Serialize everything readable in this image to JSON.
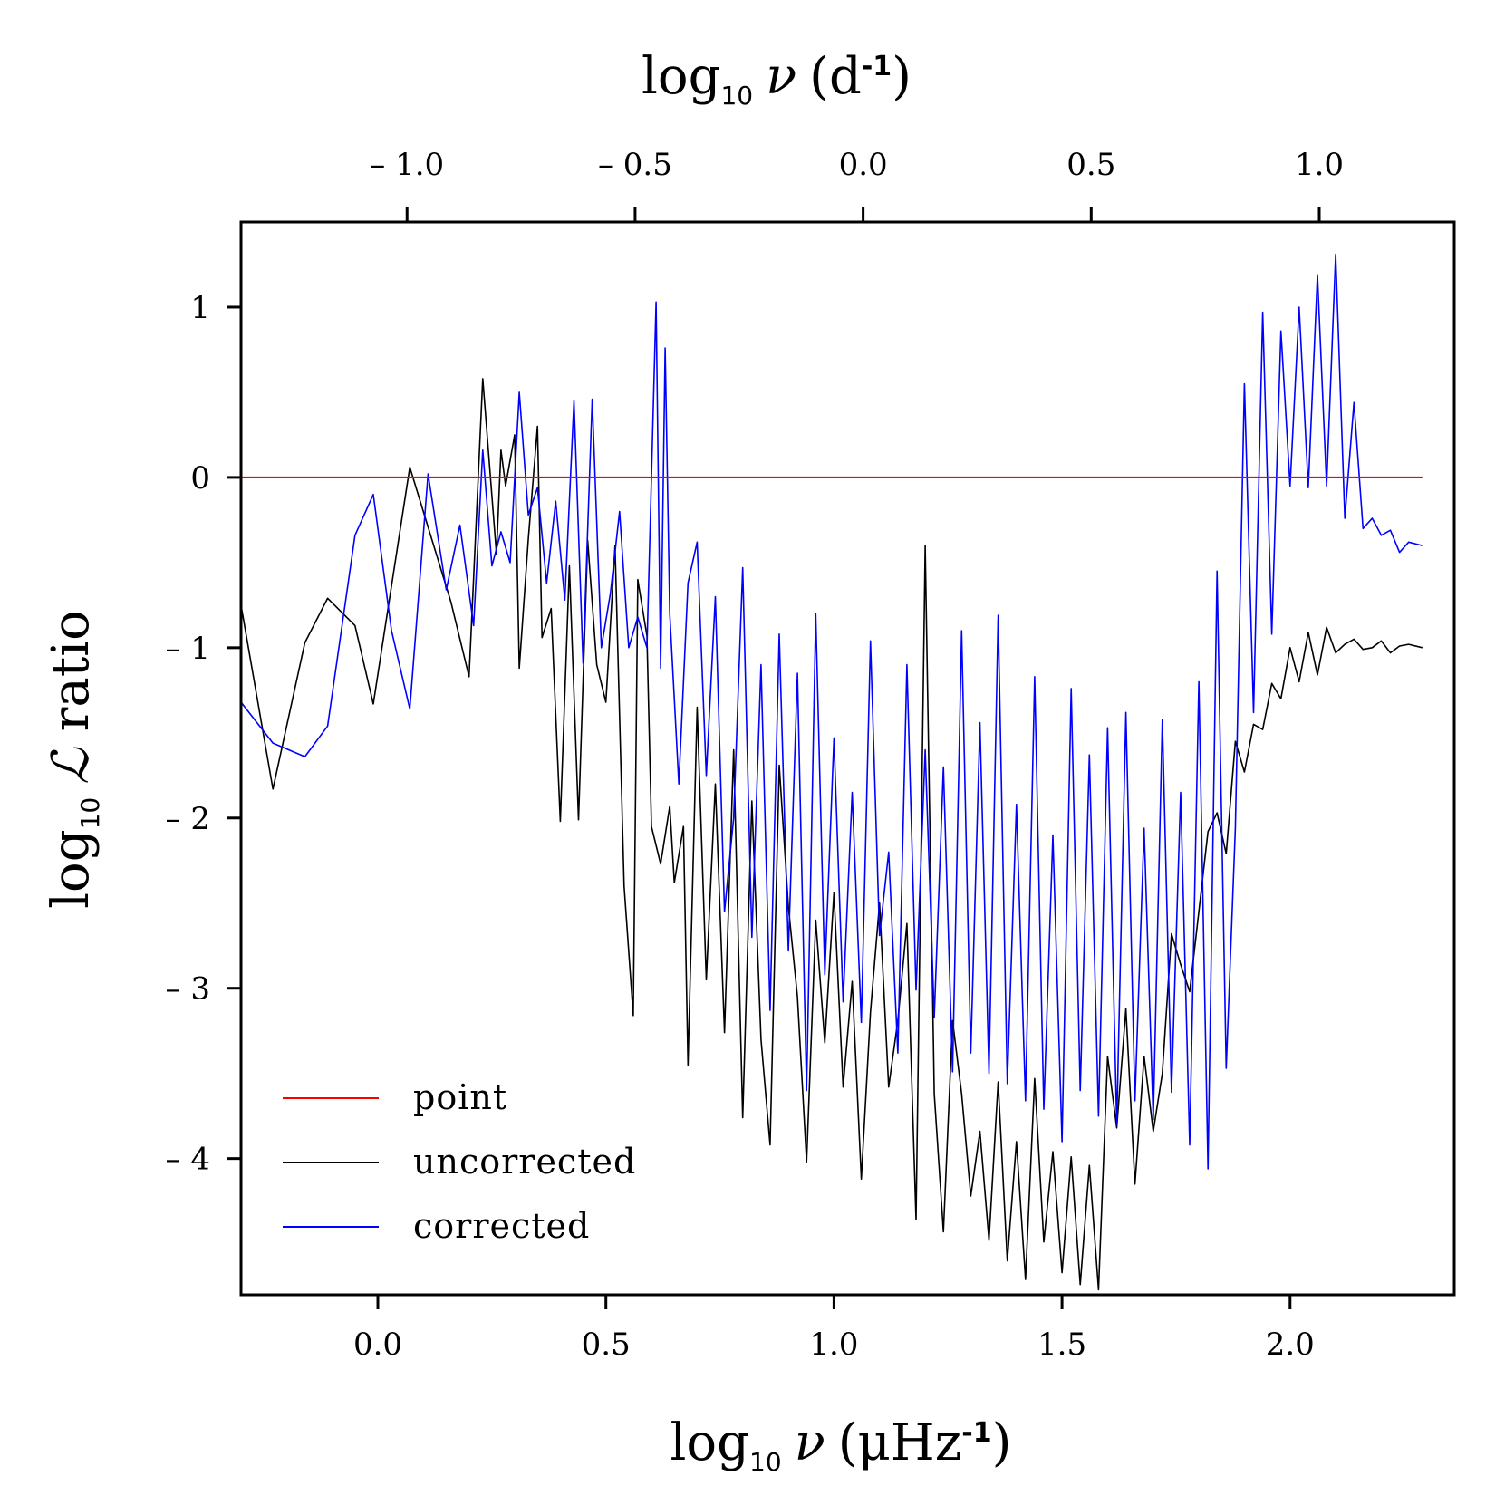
{
  "chart_data": {
    "type": "line",
    "xlabel": {
      "main": "log",
      "sub": "10",
      "var": "ν",
      "unit": "(μHz",
      "sup": "-1",
      "close": ")"
    },
    "x2label": {
      "main": "log",
      "sub": "10",
      "var": "ν",
      "unit": "(d",
      "sup": "-1",
      "close": ")"
    },
    "ylabel": {
      "main": "log",
      "sub": "10",
      "var": "ℒ",
      "rest": "ratio"
    },
    "xlim": [
      -0.3,
      2.36
    ],
    "ylim": [
      -4.8,
      1.5
    ],
    "x_ticks": [
      {
        "value": 0.0,
        "label": "0.0"
      },
      {
        "value": 0.5,
        "label": "0.5"
      },
      {
        "value": 1.0,
        "label": "1.0"
      },
      {
        "value": 1.5,
        "label": "1.5"
      },
      {
        "value": 2.0,
        "label": "2.0"
      }
    ],
    "y_ticks": [
      {
        "value": 1,
        "label": "1"
      },
      {
        "value": 0,
        "label": "0"
      },
      {
        "value": -1,
        "label": "– 1"
      },
      {
        "value": -2,
        "label": "– 2"
      },
      {
        "value": -3,
        "label": "– 3"
      },
      {
        "value": -4,
        "label": "– 4"
      }
    ],
    "x2_ticks": [
      {
        "value": -1.0,
        "label": "– 1.0"
      },
      {
        "value": -0.5,
        "label": "– 0.5"
      },
      {
        "value": 0.0,
        "label": "0.0"
      },
      {
        "value": 0.5,
        "label": "0.5"
      },
      {
        "value": 1.0,
        "label": "1.0"
      }
    ],
    "x2_offset": 1.064,
    "legend_position": "lower-left",
    "series": [
      {
        "name": "point",
        "color": "#ff0000",
        "x": [
          -0.3,
          2.29
        ],
        "y": [
          0,
          0
        ]
      },
      {
        "name": "uncorrected",
        "color": "#000000",
        "x": [
          -0.3,
          -0.23,
          -0.16,
          -0.11,
          -0.05,
          -0.01,
          0.07,
          0.16,
          0.2,
          0.23,
          0.26,
          0.27,
          0.28,
          0.3,
          0.31,
          0.33,
          0.35,
          0.36,
          0.38,
          0.4,
          0.42,
          0.44,
          0.46,
          0.48,
          0.5,
          0.52,
          0.54,
          0.56,
          0.57,
          0.59,
          0.6,
          0.62,
          0.64,
          0.65,
          0.67,
          0.68,
          0.7,
          0.72,
          0.74,
          0.76,
          0.78,
          0.8,
          0.82,
          0.84,
          0.86,
          0.88,
          0.9,
          0.92,
          0.94,
          0.96,
          0.98,
          1.0,
          1.02,
          1.04,
          1.06,
          1.08,
          1.1,
          1.12,
          1.14,
          1.16,
          1.18,
          1.2,
          1.22,
          1.24,
          1.26,
          1.28,
          1.3,
          1.32,
          1.34,
          1.36,
          1.38,
          1.4,
          1.42,
          1.44,
          1.46,
          1.48,
          1.5,
          1.52,
          1.54,
          1.56,
          1.58,
          1.6,
          1.62,
          1.64,
          1.66,
          1.68,
          1.7,
          1.72,
          1.74,
          1.76,
          1.78,
          1.8,
          1.82,
          1.84,
          1.86,
          1.88,
          1.9,
          1.92,
          1.94,
          1.96,
          1.98,
          2.0,
          2.02,
          2.04,
          2.06,
          2.08,
          2.1,
          2.12,
          2.14,
          2.16,
          2.18,
          2.2,
          2.22,
          2.24,
          2.26,
          2.29
        ],
        "y": [
          -0.75,
          -1.83,
          -0.97,
          -0.71,
          -0.87,
          -1.33,
          0.06,
          -0.73,
          -1.17,
          0.58,
          -0.45,
          0.16,
          -0.05,
          0.25,
          -1.12,
          -0.36,
          0.3,
          -0.94,
          -0.77,
          -2.02,
          -0.52,
          -2.01,
          -0.37,
          -1.1,
          -1.32,
          -0.4,
          -2.4,
          -3.16,
          -0.6,
          -0.93,
          -2.05,
          -2.27,
          -1.93,
          -2.38,
          -2.05,
          -3.45,
          -1.35,
          -2.95,
          -1.8,
          -3.26,
          -1.6,
          -3.76,
          -1.9,
          -3.3,
          -3.92,
          -1.69,
          -2.52,
          -3.05,
          -4.02,
          -2.6,
          -3.32,
          -2.44,
          -3.58,
          -2.96,
          -4.12,
          -3.14,
          -2.5,
          -3.58,
          -3.19,
          -2.62,
          -4.36,
          -0.4,
          -3.62,
          -4.43,
          -3.19,
          -3.62,
          -4.22,
          -3.84,
          -4.48,
          -3.55,
          -4.6,
          -3.9,
          -4.71,
          -3.53,
          -4.49,
          -3.96,
          -4.67,
          -3.99,
          -4.74,
          -4.04,
          -4.77,
          -3.4,
          -3.82,
          -3.12,
          -4.15,
          -3.4,
          -3.84,
          -3.5,
          -2.68,
          -2.86,
          -3.02,
          -2.55,
          -2.08,
          -1.97,
          -2.21,
          -1.55,
          -1.73,
          -1.45,
          -1.48,
          -1.21,
          -1.3,
          -1.0,
          -1.2,
          -0.91,
          -1.16,
          -0.88,
          -1.03,
          -0.98,
          -0.95,
          -1.01,
          -1.0,
          -0.96,
          -1.03,
          -0.99,
          -0.98,
          -1.0
        ]
      },
      {
        "name": "corrected",
        "color": "#0000ff",
        "x": [
          -0.3,
          -0.23,
          -0.16,
          -0.11,
          -0.05,
          -0.01,
          0.03,
          0.07,
          0.11,
          0.15,
          0.18,
          0.21,
          0.23,
          0.25,
          0.27,
          0.29,
          0.31,
          0.33,
          0.35,
          0.37,
          0.39,
          0.41,
          0.43,
          0.45,
          0.47,
          0.49,
          0.51,
          0.53,
          0.55,
          0.57,
          0.59,
          0.61,
          0.62,
          0.63,
          0.64,
          0.66,
          0.68,
          0.7,
          0.72,
          0.74,
          0.76,
          0.78,
          0.8,
          0.82,
          0.84,
          0.86,
          0.88,
          0.9,
          0.92,
          0.94,
          0.96,
          0.98,
          1.0,
          1.02,
          1.04,
          1.06,
          1.08,
          1.1,
          1.12,
          1.14,
          1.16,
          1.18,
          1.2,
          1.22,
          1.24,
          1.26,
          1.28,
          1.3,
          1.32,
          1.34,
          1.36,
          1.38,
          1.4,
          1.42,
          1.44,
          1.46,
          1.48,
          1.5,
          1.52,
          1.54,
          1.56,
          1.58,
          1.6,
          1.62,
          1.64,
          1.66,
          1.68,
          1.7,
          1.72,
          1.74,
          1.76,
          1.78,
          1.8,
          1.82,
          1.84,
          1.86,
          1.88,
          1.9,
          1.92,
          1.94,
          1.96,
          1.98,
          2.0,
          2.02,
          2.04,
          2.06,
          2.08,
          2.1,
          2.12,
          2.14,
          2.16,
          2.18,
          2.2,
          2.22,
          2.24,
          2.26,
          2.29
        ],
        "y": [
          -1.32,
          -1.56,
          -1.64,
          -1.46,
          -0.34,
          -0.1,
          -0.9,
          -1.36,
          0.02,
          -0.66,
          -0.28,
          -0.87,
          0.16,
          -0.52,
          -0.32,
          -0.5,
          0.5,
          -0.22,
          -0.06,
          -0.62,
          -0.14,
          -0.72,
          0.45,
          -1.09,
          0.46,
          -1.0,
          -0.68,
          -0.2,
          -1.0,
          -0.82,
          -1.0,
          1.03,
          -1.12,
          0.76,
          -0.8,
          -1.8,
          -0.62,
          -0.38,
          -1.75,
          -0.7,
          -2.55,
          -2.0,
          -0.53,
          -2.7,
          -1.1,
          -3.13,
          -0.92,
          -2.78,
          -1.15,
          -3.6,
          -0.8,
          -2.92,
          -1.53,
          -3.08,
          -1.85,
          -3.2,
          -0.96,
          -2.69,
          -2.2,
          -3.38,
          -1.1,
          -3.01,
          -1.6,
          -3.17,
          -1.7,
          -3.49,
          -0.9,
          -3.38,
          -1.44,
          -3.5,
          -0.81,
          -3.56,
          -1.92,
          -3.66,
          -1.17,
          -3.71,
          -2.1,
          -3.9,
          -1.24,
          -3.6,
          -1.63,
          -3.75,
          -1.47,
          -3.8,
          -1.38,
          -3.66,
          -2.06,
          -3.77,
          -1.42,
          -3.61,
          -1.85,
          -3.92,
          -1.2,
          -4.06,
          -0.55,
          -3.47,
          -2.06,
          0.55,
          -1.38,
          0.97,
          -0.92,
          0.86,
          -0.05,
          1.0,
          -0.06,
          1.19,
          -0.05,
          1.31,
          -0.24,
          0.44,
          -0.3,
          -0.24,
          -0.34,
          -0.31,
          -0.44,
          -0.38,
          -0.4
        ]
      }
    ]
  }
}
